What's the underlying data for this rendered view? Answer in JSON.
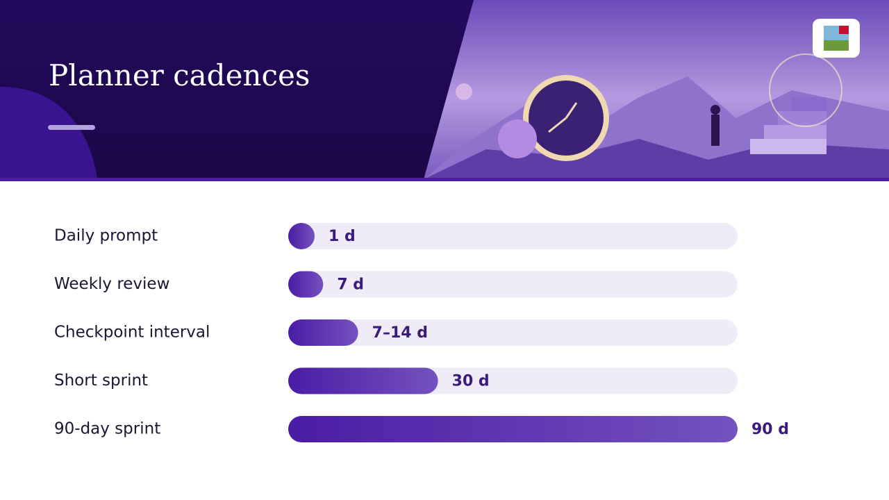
{
  "header": {
    "title": "Planner cadences"
  },
  "chart_data": {
    "type": "bar",
    "orientation": "horizontal",
    "categories": [
      "Daily prompt",
      "Weekly review",
      "Checkpoint interval",
      "Short sprint",
      "90-day sprint"
    ],
    "values": [
      1,
      7,
      14,
      30,
      90
    ],
    "value_labels": [
      "1 d",
      "7 d",
      "7–14 d",
      "30 d",
      "90 d"
    ],
    "xlim": [
      0,
      90
    ],
    "color": "#4f23a8"
  }
}
